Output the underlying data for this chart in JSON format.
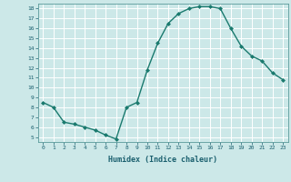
{
  "x": [
    0,
    1,
    2,
    3,
    4,
    5,
    6,
    7,
    8,
    9,
    10,
    11,
    12,
    13,
    14,
    15,
    16,
    17,
    18,
    19,
    20,
    21,
    22,
    23
  ],
  "y": [
    8.5,
    8.0,
    6.5,
    6.3,
    6.0,
    5.7,
    5.2,
    4.8,
    8.0,
    8.5,
    11.8,
    14.5,
    16.5,
    17.5,
    18.0,
    18.2,
    18.2,
    18.0,
    16.0,
    14.2,
    13.2,
    12.7,
    11.5,
    10.8
  ],
  "line_color": "#1a7a6e",
  "marker": "D",
  "marker_size": 2,
  "bg_color": "#cce8e8",
  "grid_color": "#ffffff",
  "xlabel": "Humidex (Indice chaleur)",
  "ylim": [
    4.5,
    18.5
  ],
  "xlim": [
    -0.5,
    23.5
  ],
  "yticks": [
    5,
    6,
    7,
    8,
    9,
    10,
    11,
    12,
    13,
    14,
    15,
    16,
    17,
    18
  ],
  "xticks": [
    0,
    1,
    2,
    3,
    4,
    5,
    6,
    7,
    8,
    9,
    10,
    11,
    12,
    13,
    14,
    15,
    16,
    17,
    18,
    19,
    20,
    21,
    22,
    23
  ],
  "tick_color": "#1a5f6e",
  "label_color": "#1a5f6e",
  "spine_color": "#5a9a9a"
}
